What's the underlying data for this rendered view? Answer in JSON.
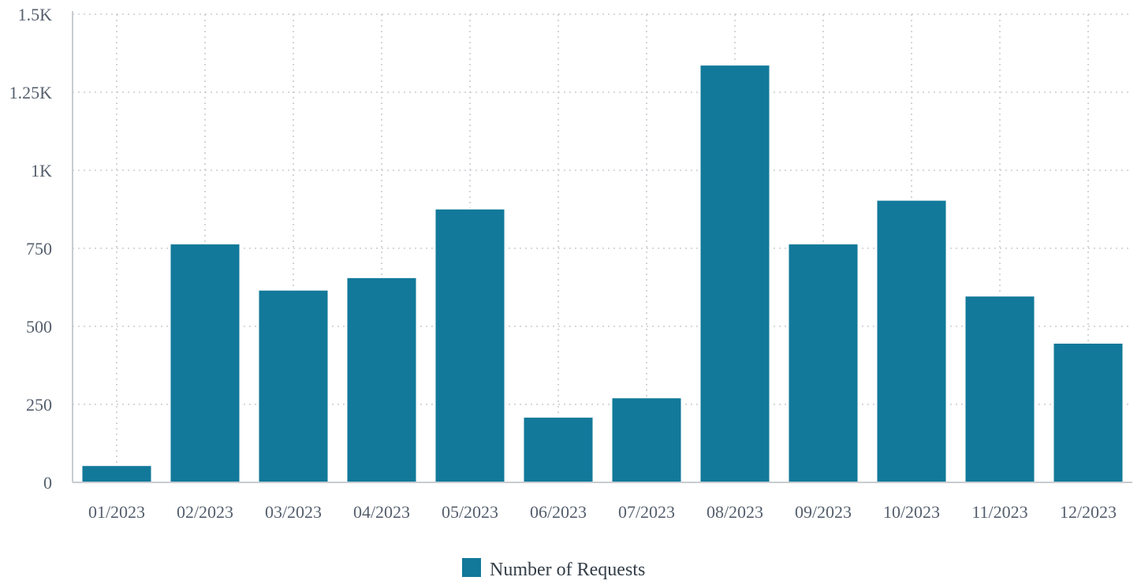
{
  "chart_data": {
    "type": "bar",
    "categories": [
      "01/2023",
      "02/2023",
      "03/2023",
      "04/2023",
      "05/2023",
      "06/2023",
      "07/2023",
      "08/2023",
      "09/2023",
      "10/2023",
      "11/2023",
      "12/2023"
    ],
    "series": [
      {
        "name": "Number of Requests",
        "color": "#12799a",
        "values": [
          55,
          765,
          617,
          657,
          877,
          210,
          272,
          1338,
          765,
          905,
          598,
          447
        ]
      }
    ],
    "ylim": [
      0,
      1500
    ],
    "yticks": [
      0,
      250,
      500,
      750,
      1000,
      1250,
      1500
    ],
    "ytick_labels": [
      "0",
      "250",
      "500",
      "750",
      "1K",
      "1.25K",
      "1.5K"
    ],
    "grid": true,
    "legend_position": "bottom-center"
  }
}
